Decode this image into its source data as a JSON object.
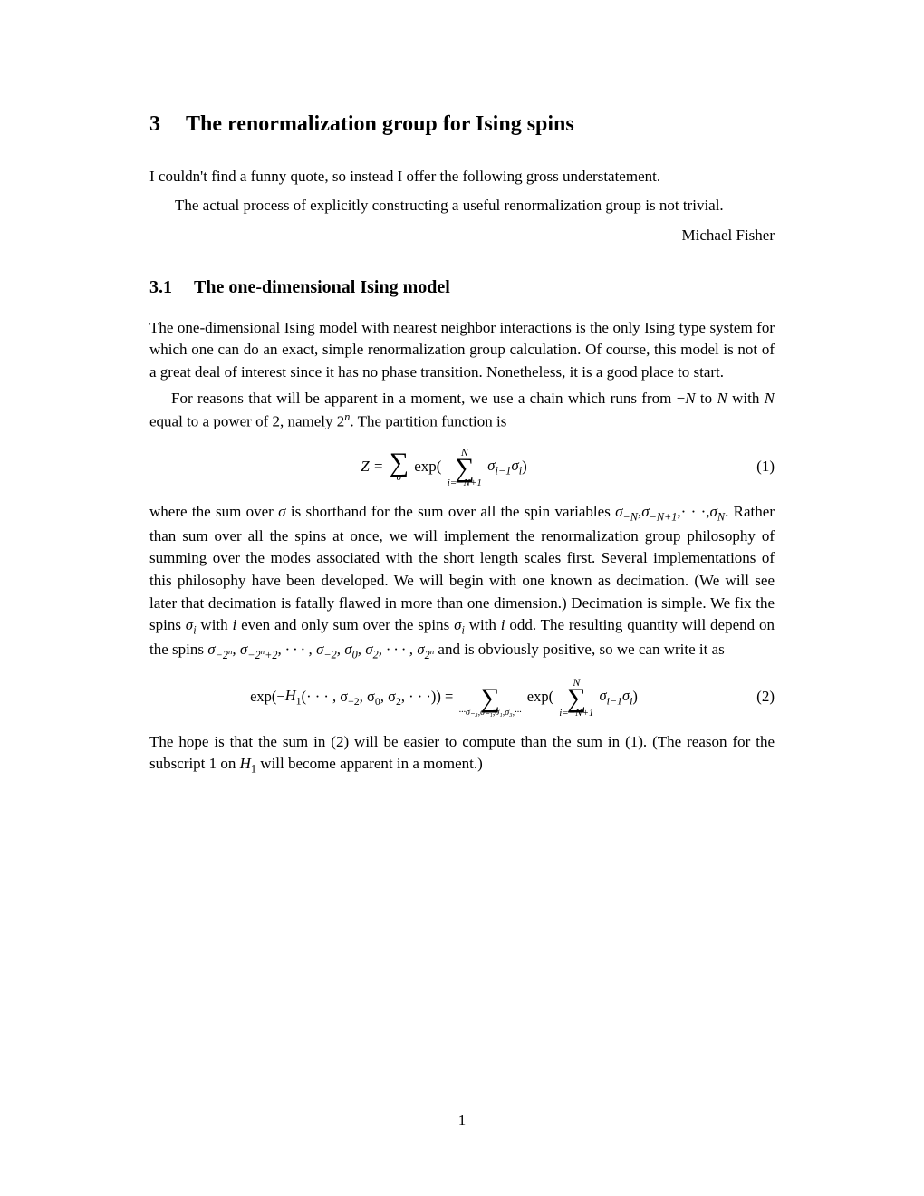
{
  "section": {
    "number": "3",
    "title": "The renormalization group for Ising spins"
  },
  "intro": "I couldn't find a funny quote, so instead I offer the following gross understatement.",
  "quote": {
    "text": "The actual process of explicitly constructing a useful renormalization group is not trivial.",
    "author": "Michael Fisher"
  },
  "subsection": {
    "number": "3.1",
    "title": "The one-dimensional Ising model"
  },
  "para1": "The one-dimensional Ising model with nearest neighbor interactions is the only Ising type system for which one can do an exact, simple renormalization group calculation. Of course, this model is not of a great deal of interest since it has no phase transition. Nonetheless, it is a good place to start.",
  "para2_a": "For reasons that will be apparent in a moment, we use a chain which runs from −",
  "para2_b": " to ",
  "para2_c": " with ",
  "para2_d": " equal to a power of 2, namely 2",
  "para2_e": ". The partition function is",
  "eq1": {
    "lhs": "Z = ",
    "sum1_top": "",
    "sum1_bot": "σ",
    "mid": " exp(",
    "sum2_top": "N",
    "sum2_bot": "i=−N+1",
    "arg": " σ",
    "sub1": "i−1",
    "arg2": "σ",
    "sub2": "i",
    "close": ")",
    "num": "(1)"
  },
  "para3_a": "where the sum over ",
  "para3_b": " is shorthand for the sum over all the spin variables ",
  "para3_c": ". Rather than sum over all the spins at once, we will implement the renormalization group philosophy of summing over the modes associated with the short length scales first. Several implementations of this philosophy have been developed. We will begin with one known as decimation. (We will see later that decimation is fatally flawed in more than one dimension.) Decimation is simple. We fix the spins ",
  "para3_d": " with ",
  "para3_e": " even and only sum over the spins ",
  "para3_f": " with ",
  "para3_g": " odd. The resulting quantity will depend on the spins ",
  "para3_h": " and is obviously positive, so we can write it as",
  "eq2": {
    "lhs_a": "exp(−",
    "lhs_b": "(· · · , σ",
    "lhs_c": ", σ",
    "lhs_d": ", σ",
    "lhs_e": ", · · ·)) = ",
    "sum1_bot": "···σ₋₃,σ₋₁,σ₁,σ₃,···",
    "mid": " exp(",
    "sum2_top": "N",
    "sum2_bot": "i=−N+1",
    "arg": " σ",
    "sub1": "i−1",
    "arg2": "σ",
    "sub2": "i",
    "close": ")",
    "num": "(2)"
  },
  "para4_a": "The hope is that the sum in (2) will be easier to compute than the sum in (1). (The reason for the subscript 1 on ",
  "para4_b": " will become apparent in a moment.)",
  "page_number": "1"
}
